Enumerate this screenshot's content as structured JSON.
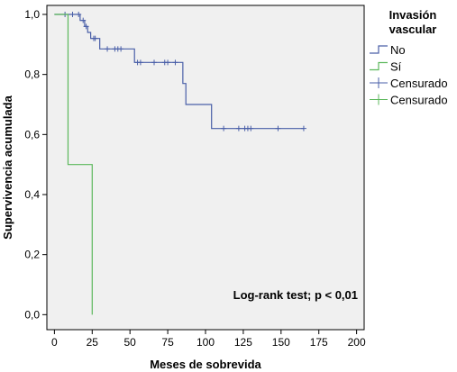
{
  "chart_data": {
    "type": "line",
    "subtype": "kaplan-meier step",
    "xlabel": "Meses de sobrevida",
    "ylabel": "Supervivencia acumulada",
    "xlim": [
      -5,
      205
    ],
    "ylim": [
      -0.05,
      1.03
    ],
    "xticks": [
      "0",
      "25",
      "50",
      "75",
      "100",
      "125",
      "150",
      "175",
      "200"
    ],
    "yticks": [
      "0,0",
      "0,2",
      "0,4",
      "0,6",
      "0,8",
      "1,0"
    ],
    "xtick_values": [
      0,
      25,
      50,
      75,
      100,
      125,
      150,
      175,
      200
    ],
    "ytick_values": [
      0,
      0.2,
      0.4,
      0.6,
      0.8,
      1.0
    ],
    "plot_background": "#f0f0f0",
    "grid": false,
    "legend": {
      "title_lines": [
        "Invasión",
        "vascular"
      ],
      "placement": "right",
      "entries": [
        {
          "label": "No",
          "color": "#4a5fa8",
          "marker": "step"
        },
        {
          "label": "Sí",
          "color": "#5cb85c",
          "marker": "step"
        },
        {
          "label": "Censurado",
          "color": "#4a5fa8",
          "marker": "plus"
        },
        {
          "label": "Censurado",
          "color": "#5cb85c",
          "marker": "plus"
        }
      ]
    },
    "annotation": "Log-rank test; p < 0,01",
    "series": [
      {
        "name": "No",
        "color": "#4a5fa8",
        "steps": [
          [
            0,
            1.0
          ],
          [
            17,
            0.98
          ],
          [
            20,
            0.96
          ],
          [
            22,
            0.94
          ],
          [
            24,
            0.92
          ],
          [
            30,
            0.885
          ],
          [
            53,
            0.84
          ],
          [
            85,
            0.77
          ],
          [
            87,
            0.7
          ],
          [
            104,
            0.62
          ],
          [
            165,
            0.62
          ]
        ],
        "censored": [
          [
            7,
            1.0
          ],
          [
            12,
            1.0
          ],
          [
            16,
            1.0
          ],
          [
            19,
            0.98
          ],
          [
            21,
            0.96
          ],
          [
            26,
            0.92
          ],
          [
            27,
            0.92
          ],
          [
            35,
            0.885
          ],
          [
            40,
            0.885
          ],
          [
            42,
            0.885
          ],
          [
            44,
            0.885
          ],
          [
            55,
            0.84
          ],
          [
            57,
            0.84
          ],
          [
            66,
            0.84
          ],
          [
            73,
            0.84
          ],
          [
            75,
            0.84
          ],
          [
            80,
            0.84
          ],
          [
            112,
            0.62
          ],
          [
            122,
            0.62
          ],
          [
            126,
            0.62
          ],
          [
            128,
            0.62
          ],
          [
            130,
            0.62
          ],
          [
            148,
            0.62
          ],
          [
            165,
            0.62
          ]
        ]
      },
      {
        "name": "Sí",
        "color": "#5cb85c",
        "steps": [
          [
            0,
            1.0
          ],
          [
            9,
            0.5
          ],
          [
            25,
            0.0
          ]
        ],
        "end_x": 25
      }
    ]
  }
}
